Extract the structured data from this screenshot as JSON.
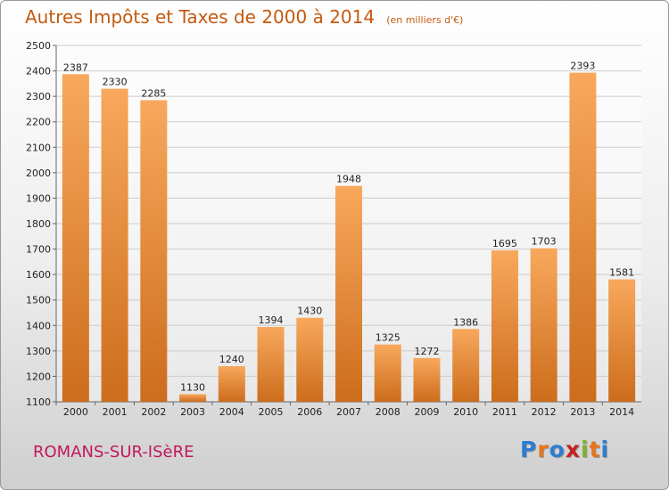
{
  "header": {
    "title": "Autres Impôts et Taxes de 2000 à 2014",
    "unit": "(en milliers d'€)"
  },
  "footer": {
    "town": "ROMANS-SUR-ISèRE"
  },
  "brand": {
    "text": "Proxiti",
    "letter_colors": [
      "#2e7dd1",
      "#e8731a",
      "#2e7dd1",
      "#c42020",
      "#7cb32e",
      "#e8731a",
      "#2e7dd1"
    ]
  },
  "colors": {
    "bar_light": "#f8a85c",
    "bar_dark": "#cc6d1c",
    "grid": "#cccccc",
    "title": "#c35a0f"
  },
  "chart_data": {
    "type": "bar",
    "title": "Autres Impôts et Taxes de 2000 à 2014",
    "subtitle": "(en milliers d'€)",
    "xlabel": "",
    "ylabel": "",
    "categories": [
      "2000",
      "2001",
      "2002",
      "2003",
      "2004",
      "2005",
      "2006",
      "2007",
      "2008",
      "2009",
      "2010",
      "2011",
      "2012",
      "2013",
      "2014"
    ],
    "values": [
      2387,
      2330,
      2285,
      1130,
      1240,
      1394,
      1430,
      1948,
      1325,
      1272,
      1386,
      1695,
      1703,
      2393,
      1581
    ],
    "ylim": [
      1100,
      2500
    ],
    "yticks": [
      1100,
      1200,
      1300,
      1400,
      1500,
      1600,
      1700,
      1800,
      1900,
      2000,
      2100,
      2200,
      2300,
      2400,
      2500
    ],
    "grid": true,
    "data_labels": true,
    "legend": "none"
  }
}
